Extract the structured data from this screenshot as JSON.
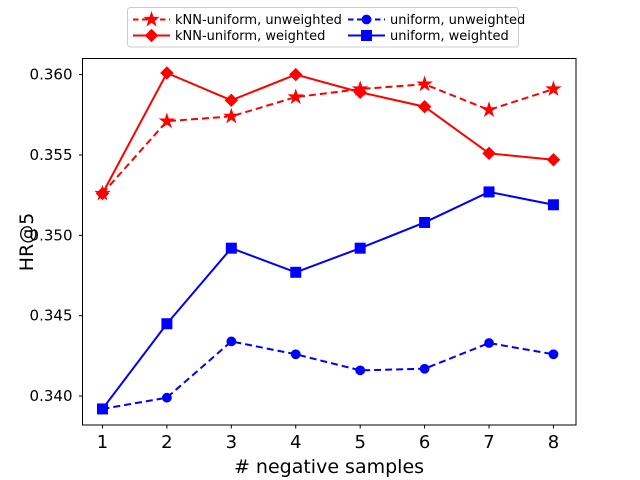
{
  "figure": {
    "background": "#ffffff"
  },
  "chart_data": {
    "type": "line",
    "title": "",
    "xlabel": "# negative samples",
    "ylabel": "HR@5",
    "x": [
      1,
      2,
      3,
      4,
      5,
      6,
      7,
      8
    ],
    "xtick_labels": [
      "1",
      "2",
      "3",
      "4",
      "5",
      "6",
      "7",
      "8"
    ],
    "ytick_values": [
      0.34,
      0.345,
      0.35,
      0.355,
      0.36
    ],
    "ytick_labels": [
      "0.340",
      "0.345",
      "0.350",
      "0.355",
      "0.360"
    ],
    "xlim": [
      0.69,
      8.35
    ],
    "ylim": [
      0.3382,
      0.361
    ],
    "grid": false,
    "axis_color": "#000000",
    "legend": {
      "position": "top",
      "ncol": 2,
      "border_color": "#cccccc",
      "background": "#ffffff"
    },
    "series": [
      {
        "name": "kNN-uniform, unweighted",
        "color": "#ff0000",
        "linestyle": "dashed",
        "marker": "star",
        "values": [
          0.3526,
          0.3571,
          0.3574,
          0.3586,
          0.3591,
          0.3594,
          0.3578,
          0.3591
        ]
      },
      {
        "name": "kNN-uniform, weighted",
        "color": "#ff0000",
        "linestyle": "solid",
        "marker": "diamond",
        "values": [
          0.3526,
          0.3601,
          0.3584,
          0.36,
          0.3589,
          0.358,
          0.3551,
          0.3547
        ]
      },
      {
        "name": "uniform, unweighted",
        "color": "#0000ff",
        "linestyle": "dashed",
        "marker": "circle",
        "values": [
          0.3392,
          0.3399,
          0.3434,
          0.3426,
          0.3416,
          0.3417,
          0.3433,
          0.3426
        ]
      },
      {
        "name": "uniform, weighted",
        "color": "#0000ff",
        "linestyle": "solid",
        "marker": "square",
        "values": [
          0.3392,
          0.3445,
          0.3492,
          0.3477,
          0.3492,
          0.3508,
          0.3527,
          0.3519
        ]
      }
    ]
  }
}
